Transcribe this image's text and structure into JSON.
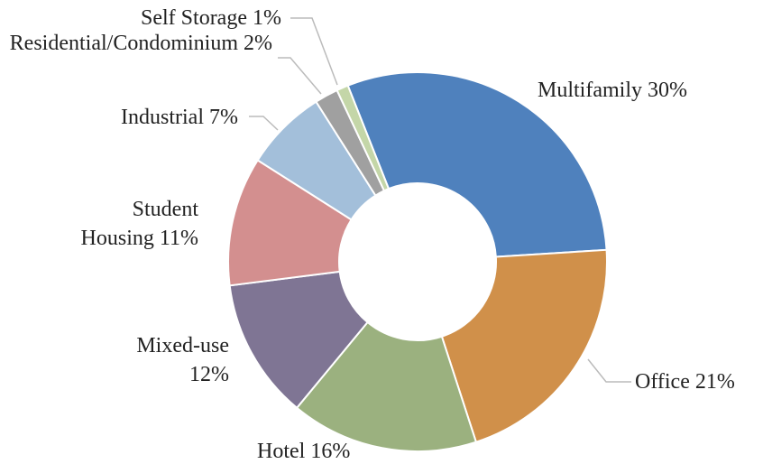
{
  "chart_data": {
    "type": "donut",
    "categories": [
      "Multifamily",
      "Office",
      "Hotel",
      "Mixed-use",
      "Student Housing",
      "Industrial",
      "Residential/Condominium",
      "Self Storage"
    ],
    "values": [
      30,
      21,
      16,
      12,
      11,
      7,
      2,
      1
    ],
    "value_labels": [
      "30%",
      "21%",
      "16%",
      "12%",
      "11%",
      "7%",
      "2%",
      "1%"
    ],
    "colors": [
      "#4f81bd",
      "#d0904a",
      "#9bb17f",
      "#7f7594",
      "#d38f8f",
      "#a3bfda",
      "#a0a0a0",
      "#c4d6a8"
    ]
  }
}
